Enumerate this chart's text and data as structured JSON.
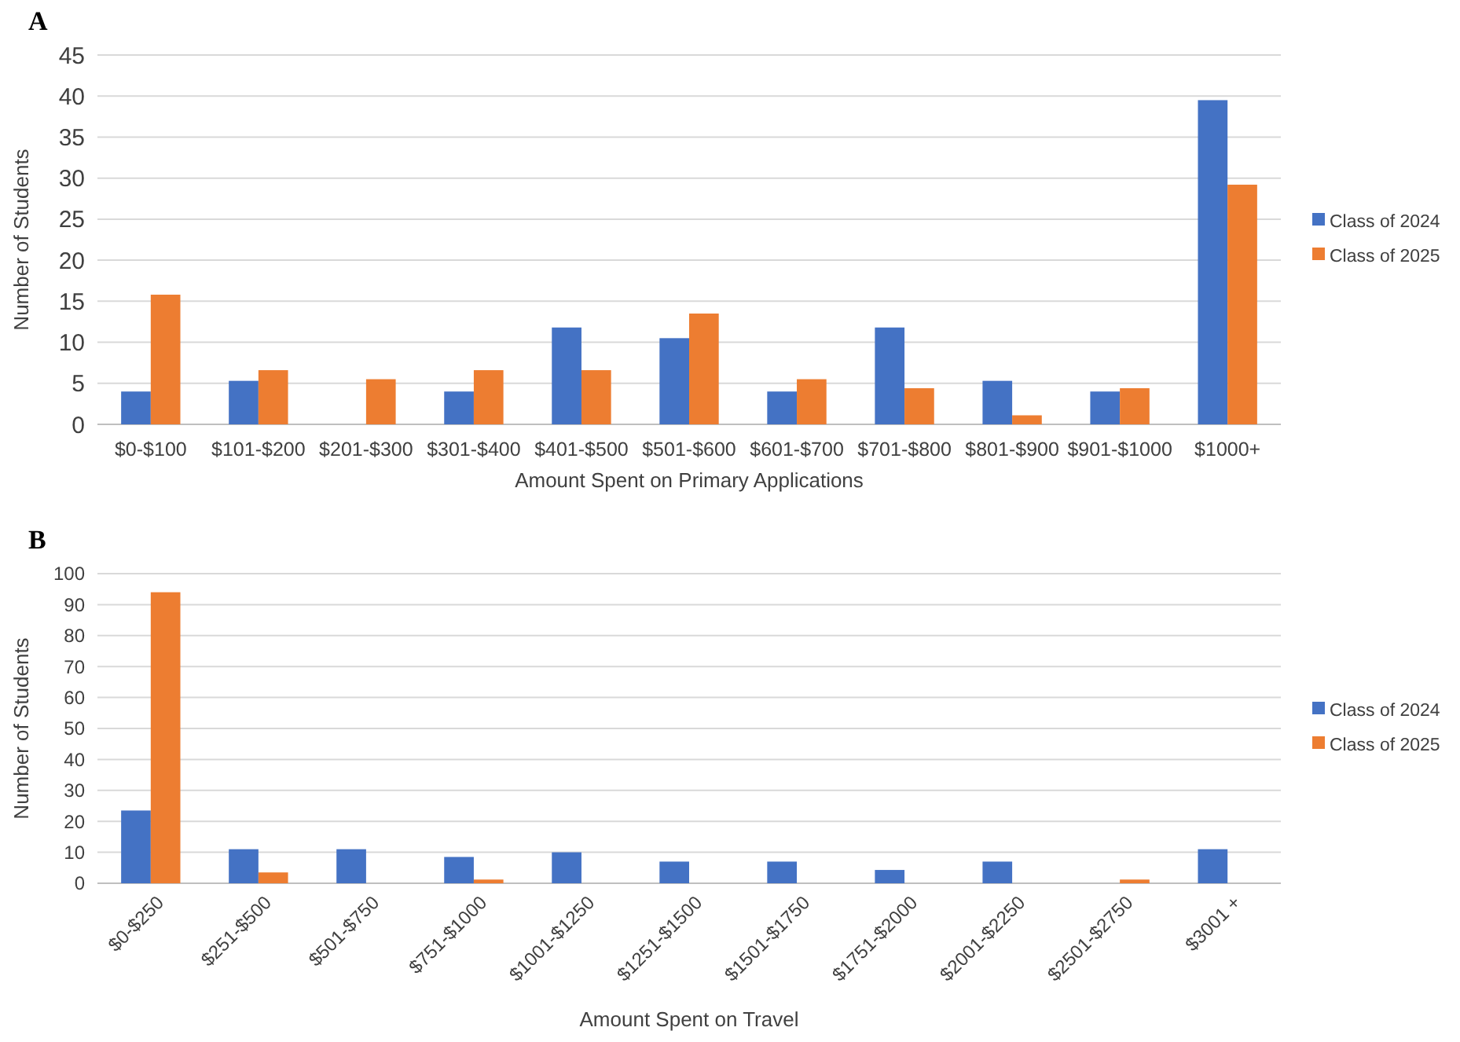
{
  "chart_data": [
    {
      "type": "bar",
      "title": "A",
      "xlabel": "Amount Spent on Primary Applications",
      "ylabel": "Number of Students",
      "categories": [
        "$0-$100",
        "$101-$200",
        "$201-$300",
        "$301-$400",
        "$401-$500",
        "$501-$600",
        "$601-$700",
        "$701-$800",
        "$801-$900",
        "$901-$1000",
        "$1000+"
      ],
      "series": [
        {
          "name": "Class of 2024",
          "color": "#4472c4",
          "values": [
            4,
            5.3,
            0,
            4,
            11.8,
            10.5,
            4,
            11.8,
            5.3,
            4,
            39.5
          ]
        },
        {
          "name": "Class of 2025",
          "color": "#ed7d31",
          "values": [
            15.8,
            6.6,
            5.5,
            6.6,
            6.6,
            13.5,
            5.5,
            4.4,
            1.1,
            4.4,
            29.2
          ]
        }
      ],
      "ylim": [
        0,
        45
      ],
      "yticks": [
        0,
        5,
        10,
        15,
        20,
        25,
        30,
        35,
        40,
        45
      ],
      "grid": "y",
      "legend": "right"
    },
    {
      "type": "bar",
      "title": "B",
      "xlabel": "Amount Spent on Travel",
      "ylabel": "Number of Students",
      "categories": [
        "$0-$250",
        "$251-$500",
        "$501-$750",
        "$751-$1000",
        "$1001-$1250",
        "$1251-$1500",
        "$1501-$1750",
        "$1751-$2000",
        "$2001-$2250",
        "$2501-$2750",
        "$3001 +"
      ],
      "series": [
        {
          "name": "Class of 2024",
          "color": "#4472c4",
          "values": [
            23.5,
            11,
            11,
            8.5,
            10,
            7,
            7,
            4.3,
            7,
            0,
            11
          ]
        },
        {
          "name": "Class of 2025",
          "color": "#ed7d31",
          "values": [
            94,
            3.5,
            0,
            1.2,
            0,
            0,
            0,
            0,
            0,
            1.2,
            0
          ]
        }
      ],
      "ylim": [
        0,
        100
      ],
      "yticks": [
        0,
        10,
        20,
        30,
        40,
        50,
        60,
        70,
        80,
        90,
        100
      ],
      "grid": "y",
      "legend": "right"
    }
  ]
}
